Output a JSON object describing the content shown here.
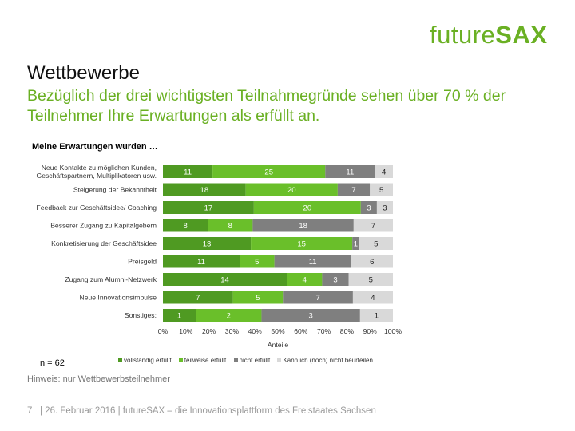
{
  "logo": {
    "light": "future",
    "bold": "SAX"
  },
  "title": "Wettbewerbe",
  "subtitle": "Bezüglich der drei wichtigsten Teilnahmegründe sehen über 70 % der Teilnehmer Ihre Erwartungen als erfüllt an.",
  "n_label": "n = 62",
  "note": "Hinweis: nur Wettbewerbsteilnehmer",
  "footer": {
    "page": "7",
    "text": "| 26. Februar 2016 | futureSAX – die Innovationsplattform  des Freistaates Sachsen"
  },
  "colors": {
    "accent": "#6ab023",
    "series": [
      "#4f9a22",
      "#6abf2a",
      "#7f7f7f",
      "#d9d9d9"
    ]
  },
  "chart_data": {
    "type": "bar",
    "orientation": "horizontal",
    "stacked": "percent",
    "title": "Meine Erwartungen wurden …",
    "xlabel": "Anteile",
    "xlim": [
      0,
      100
    ],
    "xticks": [
      "0%",
      "10%",
      "20%",
      "30%",
      "40%",
      "50%",
      "60%",
      "70%",
      "80%",
      "90%",
      "100%"
    ],
    "legend_position": "bottom",
    "categories": [
      "Neue Kontakte zu möglichen Kunden, Geschäftspartnern, Multiplikatoren usw.",
      "Steigerung der Bekanntheit",
      "Feedback zur Geschäftsidee/ Coaching",
      "Besserer Zugang zu Kapitalgebern",
      "Konkretisierung der Geschäftsidee",
      "Preisgeld",
      "Zugang zum Alumni-Netzwerk",
      "Neue Innovationsimpulse",
      "Sonstiges:"
    ],
    "series": [
      {
        "name": "vollständig erfüllt.",
        "values": [
          11,
          18,
          17,
          8,
          13,
          11,
          14,
          7,
          1
        ]
      },
      {
        "name": "teilweise erfüllt.",
        "values": [
          25,
          20,
          20,
          8,
          15,
          5,
          4,
          5,
          2
        ]
      },
      {
        "name": "nicht erfüllt.",
        "values": [
          11,
          7,
          3,
          18,
          1,
          11,
          3,
          7,
          3
        ]
      },
      {
        "name": "Kann ich (noch) nicht beurteilen.",
        "values": [
          4,
          5,
          3,
          7,
          5,
          6,
          5,
          4,
          1
        ]
      }
    ]
  }
}
